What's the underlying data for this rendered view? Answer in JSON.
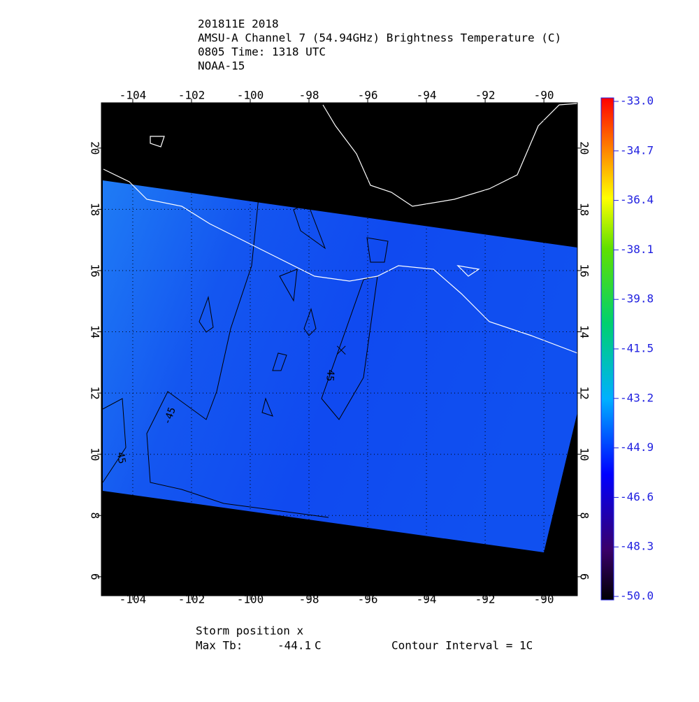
{
  "header": {
    "lines": [
      "201811E 2018",
      "AMSU-A Channel 7 (54.94GHz) Brightness Temperature (C)",
      "0805 Time: 1318 UTC",
      "NOAA-15"
    ]
  },
  "chart_data": {
    "type": "map",
    "xlim": [
      -105.07,
      -88.86
    ],
    "ylim": [
      5.38,
      21.48
    ],
    "xticks": [
      -104,
      -102,
      -100,
      -98,
      -96,
      -94,
      -92,
      -90
    ],
    "yticks": [
      6,
      8,
      10,
      12,
      14,
      16,
      18,
      20
    ],
    "grid": true,
    "storm_marker": {
      "lon": -96.9,
      "lat": 13.4
    },
    "contour_labels": [
      "45",
      "-45",
      "45"
    ],
    "colorbar": {
      "lim": [
        -50,
        -33
      ],
      "ticks": [
        {
          "value": -33,
          "label": "-33.0"
        },
        {
          "value": -34.7,
          "label": "-34.7"
        },
        {
          "value": -36.4,
          "label": "-36.4"
        },
        {
          "value": -38.1,
          "label": "-38.1"
        },
        {
          "value": -39.8,
          "label": "-39.8"
        },
        {
          "value": -41.5,
          "label": "-41.5"
        },
        {
          "value": -43.2,
          "label": "-43.2"
        },
        {
          "value": -44.9,
          "label": "-44.9"
        },
        {
          "value": -46.6,
          "label": "-46.6"
        },
        {
          "value": -48.3,
          "label": "-48.3"
        },
        {
          "value": -50,
          "label": "-50.0"
        }
      ]
    }
  },
  "footer": {
    "storm_position": "Storm position x",
    "max_tb_label": "Max Tb:",
    "max_tb": -44.1,
    "unit": "C",
    "contour_interval": "Contour Interval = 1C"
  }
}
